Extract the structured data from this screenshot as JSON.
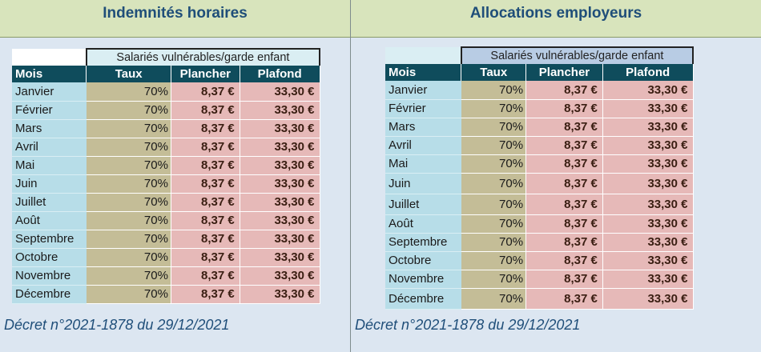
{
  "left": {
    "title": "Indemnités horaires",
    "subheader": "Salariés vulnérables/garde enfant",
    "columns": [
      "Mois",
      "Taux",
      "Plancher",
      "Plafond"
    ],
    "rows": [
      [
        "Janvier",
        "70%",
        "8,37 €",
        "33,30 €"
      ],
      [
        "Février",
        "70%",
        "8,37 €",
        "33,30 €"
      ],
      [
        "Mars",
        "70%",
        "8,37 €",
        "33,30 €"
      ],
      [
        "Avril",
        "70%",
        "8,37 €",
        "33,30 €"
      ],
      [
        "Mai",
        "70%",
        "8,37 €",
        "33,30 €"
      ],
      [
        "Juin",
        "70%",
        "8,37 €",
        "33,30 €"
      ],
      [
        "Juillet",
        "70%",
        "8,37 €",
        "33,30 €"
      ],
      [
        "Août",
        "70%",
        "8,37 €",
        "33,30 €"
      ],
      [
        "Septembre",
        "70%",
        "8,37 €",
        "33,30 €"
      ],
      [
        "Octobre",
        "70%",
        "8,37 €",
        "33,30 €"
      ],
      [
        "Novembre",
        "70%",
        "8,37 €",
        "33,30 €"
      ],
      [
        "Décembre",
        "70%",
        "8,37 €",
        "33,30 €"
      ]
    ],
    "decree": "Décret n°2021-1878 du 29/12/2021"
  },
  "right": {
    "title": "Allocations employeurs",
    "subheader": "Salariés vulnérables/garde enfant",
    "columns": [
      "Mois",
      "Taux",
      "Plancher",
      "Plafond"
    ],
    "rows": [
      [
        "Janvier",
        "70%",
        "8,37 €",
        "33,30 €"
      ],
      [
        "Février",
        "70%",
        "8,37 €",
        "33,30 €"
      ],
      [
        "Mars",
        "70%",
        "8,37 €",
        "33,30 €"
      ],
      [
        "Avril",
        "70%",
        "8,37 €",
        "33,30 €"
      ],
      [
        "Mai",
        "70%",
        "8,37 €",
        "33,30 €"
      ],
      [
        "Juin",
        "70%",
        "8,37 €",
        "33,30 €"
      ],
      [
        "Juillet",
        "70%",
        "8,37 €",
        "33,30 €"
      ],
      [
        "Août",
        "70%",
        "8,37 €",
        "33,30 €"
      ],
      [
        "Septembre",
        "70%",
        "8,37 €",
        "33,30 €"
      ],
      [
        "Octobre",
        "70%",
        "8,37 €",
        "33,30 €"
      ],
      [
        "Novembre",
        "70%",
        "8,37 €",
        "33,30 €"
      ],
      [
        "Décembre",
        "70%",
        "8,37 €",
        "33,30 €"
      ]
    ],
    "decree": "Décret n°2021-1878 du 29/12/2021"
  }
}
